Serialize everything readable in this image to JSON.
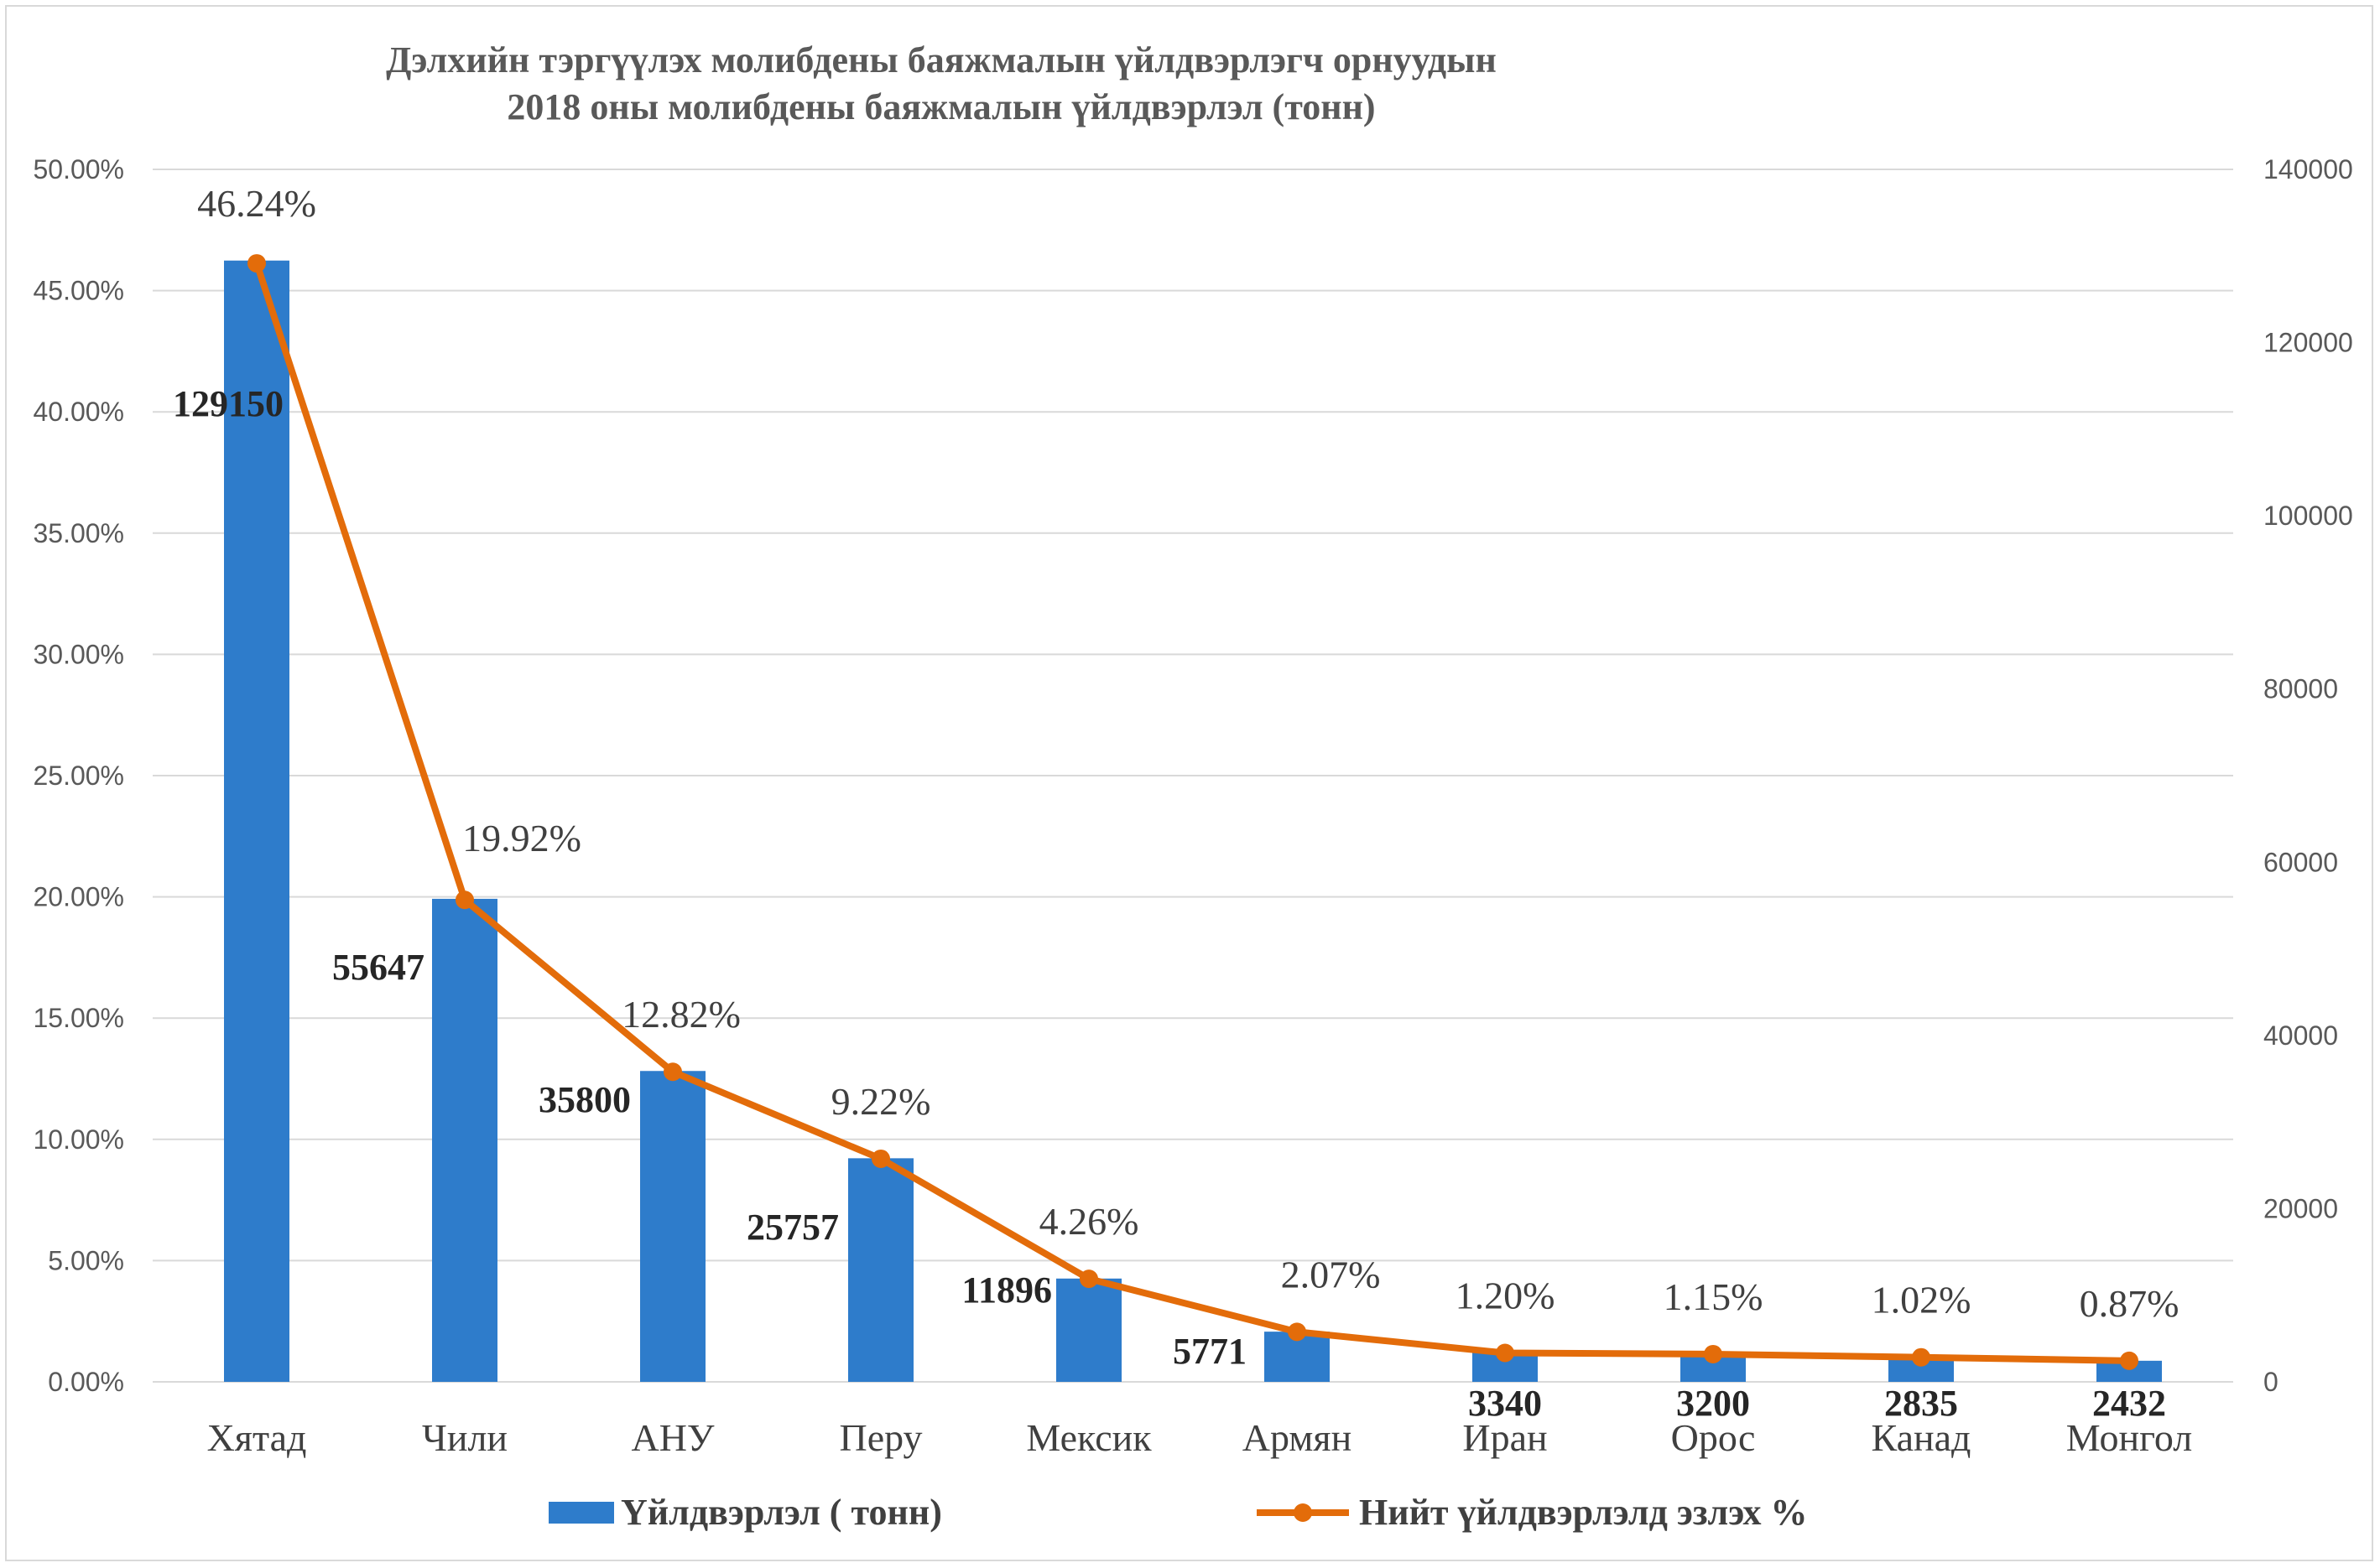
{
  "chart_data": {
    "type": "bar",
    "title": [
      "Дэлхийн тэргүүлэх  молибдены  баяжмалын үйлдвэрлэгч орнуудын",
      "2018 оны молибдены баяжмалын үйлдвэрлэл (тонн)"
    ],
    "categories": [
      "Хятад",
      "Чили",
      "АНУ",
      "Перу",
      "Мексик",
      "Армян",
      "Иран",
      "Орос",
      "Канад",
      "Монгол"
    ],
    "series": [
      {
        "name": "Үйлдвэрлэл ( тонн)",
        "type": "bar",
        "axis": "left",
        "values": [
          0.4624,
          0.1992,
          0.1282,
          0.0922,
          0.0426,
          0.0207,
          0.012,
          0.0115,
          0.0102,
          0.0087
        ],
        "data_labels": [
          "129150",
          "55647",
          "35800",
          "25757",
          "11896",
          "5771",
          "3340",
          "3200",
          "2835",
          "2432"
        ],
        "color": "#2e7ccb"
      },
      {
        "name": "Нийт үйлдвэрлэлд эзлэх %",
        "type": "line",
        "axis": "right",
        "values": [
          129150,
          55647,
          35800,
          25757,
          11896,
          5771,
          3340,
          3200,
          2835,
          2432
        ],
        "data_labels": [
          "46.24%",
          "19.92%",
          "12.82%",
          "9.22%",
          "4.26%",
          "2.07%",
          "1.20%",
          "1.15%",
          "1.02%",
          "0.87%"
        ],
        "color": "#e36c0a"
      }
    ],
    "y_left": {
      "ylim": [
        0,
        0.5
      ],
      "ticks": [
        "0.00%",
        "5.00%",
        "10.00%",
        "15.00%",
        "20.00%",
        "25.00%",
        "30.00%",
        "35.00%",
        "40.00%",
        "45.00%",
        "50.00%"
      ]
    },
    "y_right": {
      "ylim": [
        0,
        140000
      ],
      "ticks": [
        "0",
        "20000",
        "40000",
        "60000",
        "80000",
        "100000",
        "120000",
        "140000"
      ]
    },
    "grid": true,
    "legend_position": "bottom",
    "gridline_color": "#d9d9d9"
  }
}
